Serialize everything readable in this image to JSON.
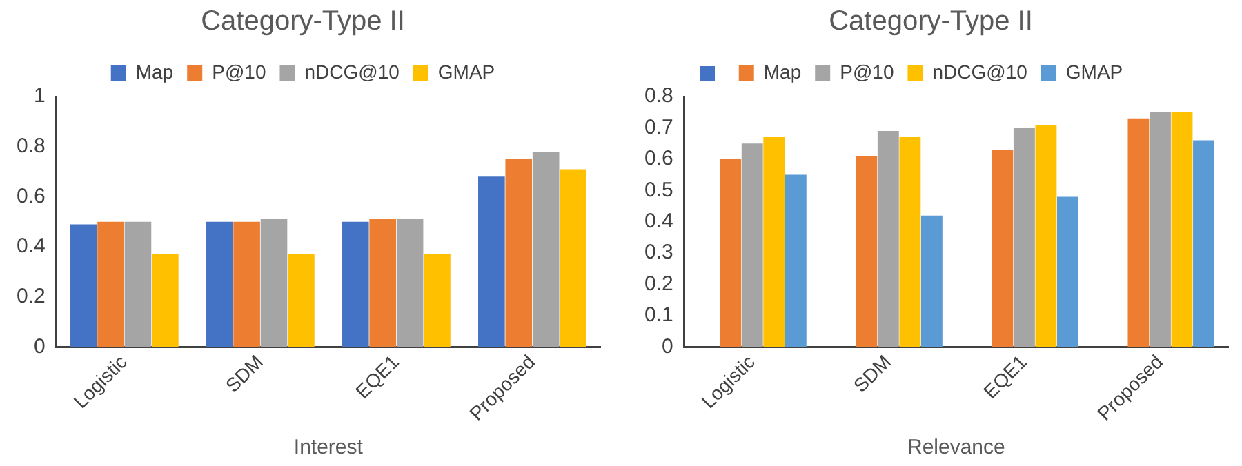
{
  "chart_data": [
    {
      "type": "bar",
      "title": "Category-Type II",
      "xlabel": "Interest",
      "categories": [
        "Logistic",
        "SDM",
        "EQE1",
        "Proposed"
      ],
      "series": [
        {
          "name": "Map",
          "color": "#4472c4",
          "values": [
            0.49,
            0.5,
            0.5,
            0.68
          ]
        },
        {
          "name": "P@10",
          "color": "#ed7d31",
          "values": [
            0.5,
            0.5,
            0.51,
            0.75
          ]
        },
        {
          "name": "nDCG@10",
          "color": "#a5a5a5",
          "values": [
            0.5,
            0.51,
            0.51,
            0.78
          ]
        },
        {
          "name": "GMAP",
          "color": "#ffc000",
          "values": [
            0.37,
            0.37,
            0.37,
            0.71
          ]
        }
      ],
      "ylim": [
        0,
        1
      ],
      "yticks": [
        0,
        0.2,
        0.4,
        0.6,
        0.8,
        1
      ],
      "grid": false,
      "legend": "top"
    },
    {
      "type": "bar",
      "title": "Category-Type II",
      "xlabel": "Relevance",
      "categories": [
        "Logistic",
        "SDM",
        "EQE1",
        "Proposed"
      ],
      "series": [
        {
          "color": "#4472c4",
          "values": [
            null,
            null,
            null,
            null
          ]
        },
        {
          "name": "Map",
          "color": "#ed7d31",
          "values": [
            0.6,
            0.61,
            0.63,
            0.73
          ]
        },
        {
          "name": "P@10",
          "color": "#a5a5a5",
          "values": [
            0.65,
            0.69,
            0.7,
            0.75
          ]
        },
        {
          "name": "nDCG@10",
          "color": "#ffc000",
          "values": [
            0.67,
            0.67,
            0.71,
            0.75
          ]
        },
        {
          "name": "GMAP",
          "color": "#5b9bd5",
          "values": [
            0.55,
            0.42,
            0.48,
            0.66
          ]
        }
      ],
      "ylim": [
        0,
        0.8
      ],
      "yticks": [
        0,
        0.1,
        0.2,
        0.3,
        0.4,
        0.5,
        0.6,
        0.7,
        0.8
      ],
      "grid": false,
      "legend": "top"
    }
  ]
}
